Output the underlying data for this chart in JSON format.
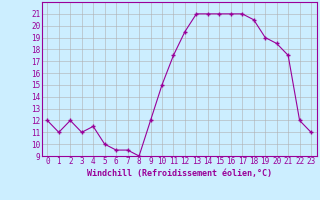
{
  "hours": [
    0,
    1,
    2,
    3,
    4,
    5,
    6,
    7,
    8,
    9,
    10,
    11,
    12,
    13,
    14,
    15,
    16,
    17,
    18,
    19,
    20,
    21,
    22,
    23
  ],
  "values": [
    12,
    11,
    12,
    11,
    11.5,
    10,
    9.5,
    9.5,
    9,
    12,
    15,
    17.5,
    19.5,
    21,
    21,
    21,
    21,
    21,
    20.5,
    19,
    18.5,
    17.5,
    12,
    11
  ],
  "xlabel": "Windchill (Refroidissement éolien,°C)",
  "ylim": [
    9,
    22
  ],
  "xlim": [
    -0.5,
    23.5
  ],
  "yticks": [
    9,
    10,
    11,
    12,
    13,
    14,
    15,
    16,
    17,
    18,
    19,
    20,
    21
  ],
  "xticks": [
    0,
    1,
    2,
    3,
    4,
    5,
    6,
    7,
    8,
    9,
    10,
    11,
    12,
    13,
    14,
    15,
    16,
    17,
    18,
    19,
    20,
    21,
    22,
    23
  ],
  "line_color": "#990099",
  "marker": "+",
  "bg_color": "#cceeff",
  "grid_color": "#b0b0b0",
  "text_color": "#990099",
  "tick_fontsize": 5.5,
  "xlabel_fontsize": 6.0
}
